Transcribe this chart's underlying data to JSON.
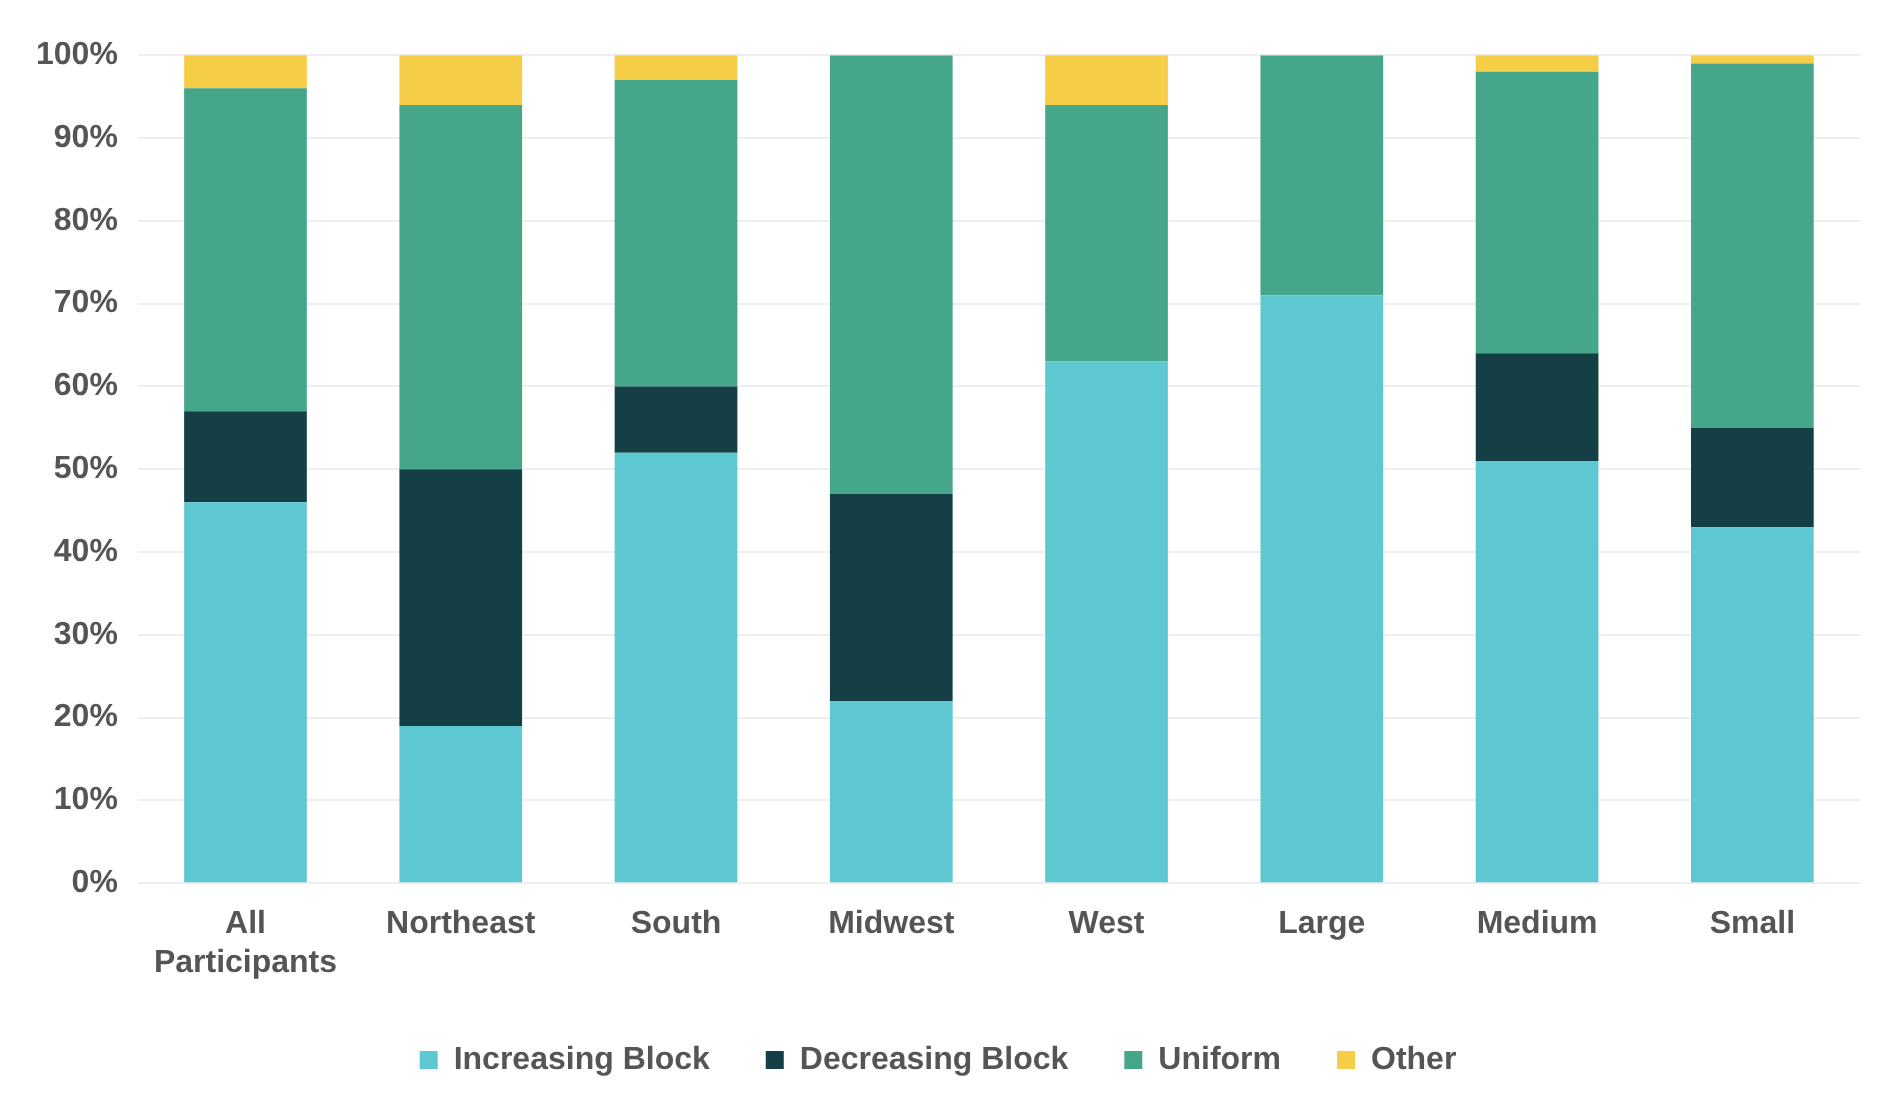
{
  "chart_data": {
    "type": "bar",
    "stacked": true,
    "categories": [
      "All Participants",
      "Northeast",
      "South",
      "Midwest",
      "West",
      "Large",
      "Medium",
      "Small"
    ],
    "series": [
      {
        "name": "Increasing Block",
        "color": "#5ec8d2",
        "values": [
          46,
          19,
          52,
          22,
          63,
          71,
          51,
          43
        ]
      },
      {
        "name": "Decreasing Block",
        "color": "#133f45",
        "values": [
          11,
          31,
          8,
          25,
          0,
          0,
          13,
          12
        ]
      },
      {
        "name": "Uniform",
        "color": "#46a68a",
        "values": [
          39,
          44,
          37,
          53,
          31,
          29,
          34,
          44
        ]
      },
      {
        "name": "Other",
        "color": "#f5cd47",
        "values": [
          4,
          6,
          3,
          0,
          6,
          0,
          2,
          1
        ]
      }
    ],
    "ylim": [
      0,
      100
    ],
    "yticks": [
      {
        "value": 0,
        "label": "0%"
      },
      {
        "value": 10,
        "label": "10%"
      },
      {
        "value": 20,
        "label": "20%"
      },
      {
        "value": 30,
        "label": "30%"
      },
      {
        "value": 40,
        "label": "40%"
      },
      {
        "value": 50,
        "label": "50%"
      },
      {
        "value": 60,
        "label": "60%"
      },
      {
        "value": 70,
        "label": "70%"
      },
      {
        "value": 80,
        "label": "80%"
      },
      {
        "value": 90,
        "label": "90%"
      },
      {
        "value": 100,
        "label": "100%"
      }
    ],
    "grid": "y",
    "legend": "bottom"
  }
}
